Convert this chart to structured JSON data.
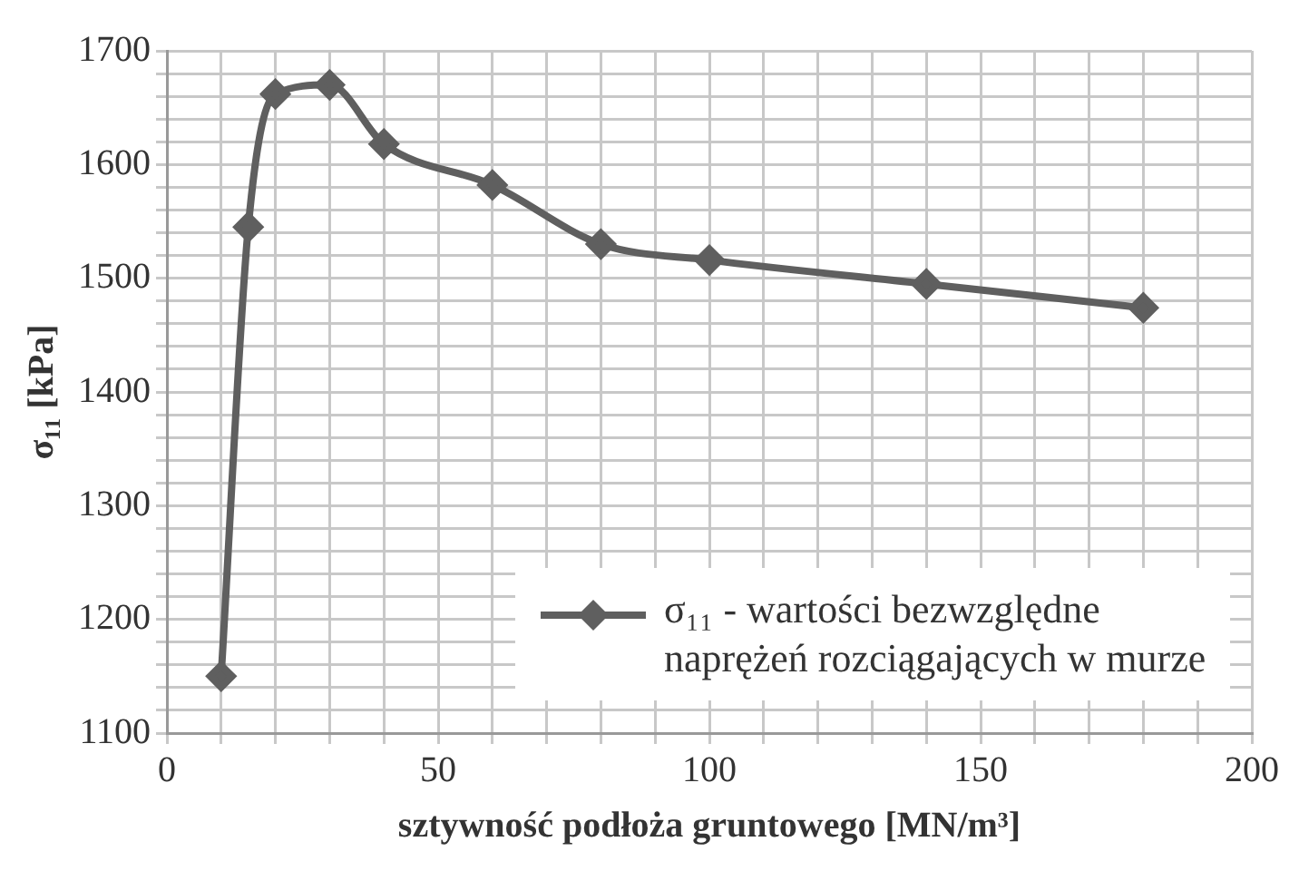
{
  "chart_data": {
    "type": "line",
    "xlabel": "sztywność podłoża gruntowego [MN/m³]",
    "ylabel": "σ₁₁ [kPa]",
    "x": [
      10,
      15,
      20,
      30,
      40,
      60,
      80,
      100,
      140,
      180
    ],
    "series": [
      {
        "name": "σ₁₁ - wartości bezwzględne naprężeń rozciągających w murze",
        "color": "#5f5f5f",
        "values": [
          1150,
          1545,
          1662,
          1670,
          1618,
          1582,
          1530,
          1516,
          1495,
          1474
        ]
      }
    ],
    "xlim": [
      0,
      200
    ],
    "xticks": [
      0,
      {
        "value": 10,
        "label": null
      },
      {
        "value": 20,
        "label": null
      },
      {
        "value": 30,
        "label": null
      },
      {
        "value": 40,
        "label": null
      },
      50,
      {
        "value": 60,
        "label": null
      },
      {
        "value": 70,
        "label": null
      },
      {
        "value": 80,
        "label": null
      },
      {
        "value": 90,
        "label": null
      },
      100,
      {
        "value": 110,
        "label": null
      },
      {
        "value": 120,
        "label": null
      },
      {
        "value": 130,
        "label": null
      },
      {
        "value": 140,
        "label": null
      },
      150,
      {
        "value": 160,
        "label": null
      },
      {
        "value": 170,
        "label": null
      },
      {
        "value": 180,
        "label": null
      },
      {
        "value": 190,
        "label": null
      },
      200
    ],
    "ylim": [
      1100,
      1700
    ],
    "yticks": [
      1100,
      {
        "value": 1120,
        "label": null
      },
      {
        "value": 1140,
        "label": null
      },
      {
        "value": 1160,
        "label": null
      },
      {
        "value": 1180,
        "label": null
      },
      1200,
      {
        "value": 1220,
        "label": null
      },
      {
        "value": 1240,
        "label": null
      },
      {
        "value": 1260,
        "label": null
      },
      {
        "value": 1280,
        "label": null
      },
      1300,
      {
        "value": 1320,
        "label": null
      },
      {
        "value": 1340,
        "label": null
      },
      {
        "value": 1360,
        "label": null
      },
      {
        "value": 1380,
        "label": null
      },
      1400,
      {
        "value": 1420,
        "label": null
      },
      {
        "value": 1440,
        "label": null
      },
      {
        "value": 1460,
        "label": null
      },
      {
        "value": 1480,
        "label": null
      },
      1500,
      {
        "value": 1520,
        "label": null
      },
      {
        "value": 1540,
        "label": null
      },
      {
        "value": 1560,
        "label": null
      },
      {
        "value": 1580,
        "label": null
      },
      1600,
      {
        "value": 1620,
        "label": null
      },
      {
        "value": 1640,
        "label": null
      },
      {
        "value": 1660,
        "label": null
      },
      {
        "value": 1680,
        "label": null
      },
      1700
    ],
    "grid": true,
    "legend": "bottom right",
    "marker": "diamond",
    "line_style": "solid"
  }
}
